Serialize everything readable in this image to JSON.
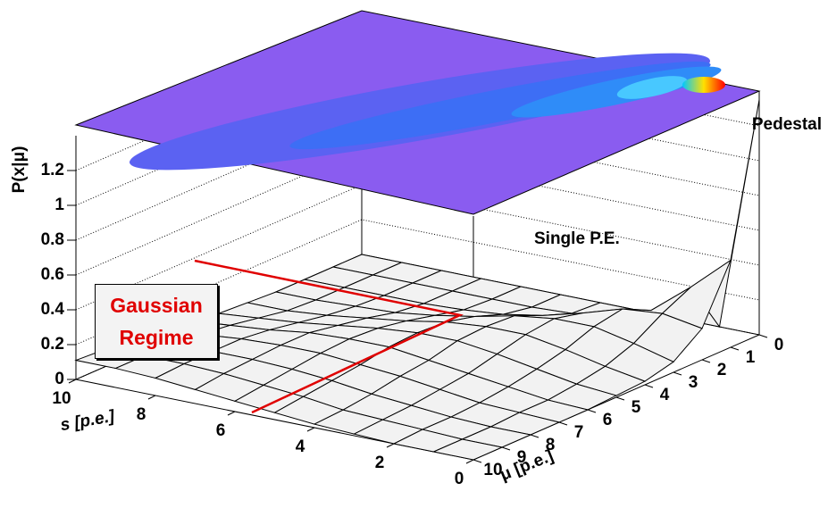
{
  "chart_data": {
    "type": "surface",
    "xlabel": "s [p.e.]",
    "ylabel": "μ [p.e.]",
    "zlabel": "P(x|μ)",
    "x": [
      0,
      1,
      2,
      3,
      4,
      5,
      6,
      7,
      8,
      9,
      10
    ],
    "y": [
      0,
      1,
      2,
      3,
      4,
      5,
      6,
      7,
      8,
      9,
      10
    ],
    "values": [
      [
        1.35,
        0,
        0,
        0,
        0,
        0,
        0,
        0,
        0,
        0,
        0
      ],
      [
        0.5,
        0.3,
        0.12,
        0.04,
        0.01,
        0,
        0,
        0,
        0,
        0,
        0
      ],
      [
        0.18,
        0.22,
        0.2,
        0.13,
        0.07,
        0.03,
        0.01,
        0,
        0,
        0,
        0
      ],
      [
        0.06,
        0.12,
        0.17,
        0.17,
        0.14,
        0.09,
        0.05,
        0.02,
        0.01,
        0,
        0
      ],
      [
        0.02,
        0.06,
        0.11,
        0.15,
        0.15,
        0.13,
        0.09,
        0.06,
        0.03,
        0.01,
        0.01
      ],
      [
        0.01,
        0.03,
        0.07,
        0.11,
        0.14,
        0.14,
        0.12,
        0.09,
        0.06,
        0.04,
        0.02
      ],
      [
        0,
        0.01,
        0.04,
        0.07,
        0.1,
        0.13,
        0.13,
        0.12,
        0.09,
        0.07,
        0.05
      ],
      [
        0,
        0.01,
        0.02,
        0.05,
        0.08,
        0.1,
        0.12,
        0.12,
        0.11,
        0.09,
        0.07
      ],
      [
        0,
        0,
        0.01,
        0.03,
        0.05,
        0.08,
        0.1,
        0.11,
        0.11,
        0.1,
        0.09
      ],
      [
        0,
        0,
        0.01,
        0.02,
        0.03,
        0.06,
        0.08,
        0.1,
        0.11,
        0.11,
        0.1
      ],
      [
        0,
        0,
        0,
        0.01,
        0.02,
        0.04,
        0.06,
        0.08,
        0.1,
        0.11,
        0.11
      ]
    ],
    "xlim": [
      0,
      10
    ],
    "ylim": [
      0,
      10
    ],
    "zlim": [
      0,
      1.4
    ],
    "xticks": [
      0,
      2,
      4,
      6,
      8,
      10
    ],
    "yticks": [
      0,
      1,
      2,
      3,
      4,
      5,
      6,
      7,
      8,
      9,
      10
    ],
    "zticks": [
      0,
      0.2,
      0.4,
      0.6,
      0.8,
      1,
      1.2
    ],
    "grid": true,
    "color": "#f2f2f2",
    "annotations": [
      "Pedestal",
      "Single P.E.",
      "Gaussian Regime"
    ]
  }
}
